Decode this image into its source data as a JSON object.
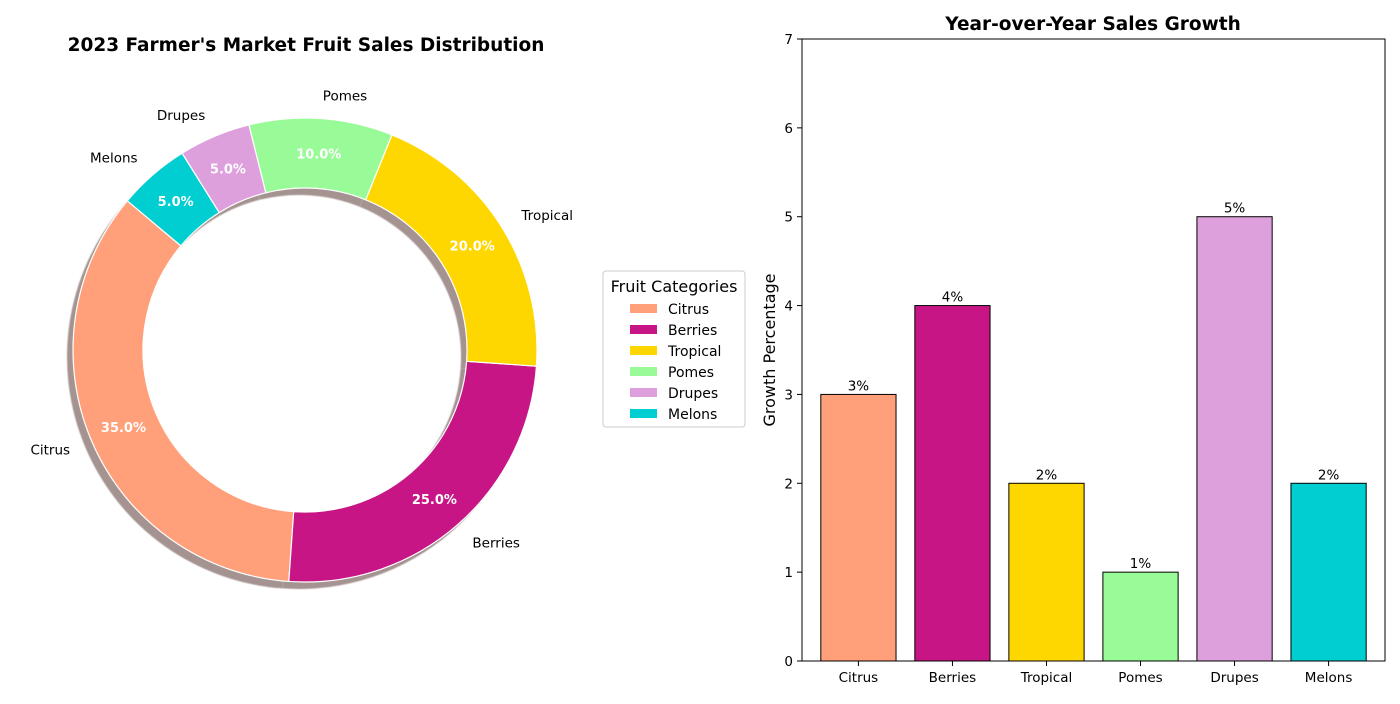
{
  "chart_data": [
    {
      "type": "pie",
      "title": "2023 Farmer's Market Fruit Sales Distribution",
      "donut": true,
      "shadow": true,
      "categories": [
        "Citrus",
        "Berries",
        "Tropical",
        "Pomes",
        "Drupes",
        "Melons"
      ],
      "values": [
        35,
        25,
        20,
        10,
        5,
        5
      ],
      "pct_labels": [
        "35.0%",
        "25.0%",
        "20.0%",
        "10.0%",
        "5.0%",
        "5.0%"
      ],
      "colors": [
        "#FFA07A",
        "#C71585",
        "#FFD700",
        "#98FB98",
        "#DDA0DD",
        "#00CED1"
      ],
      "legend": {
        "title": "Fruit Categories",
        "placement": "right",
        "entries": [
          "Citrus",
          "Berries",
          "Tropical",
          "Pomes",
          "Drupes",
          "Melons"
        ]
      }
    },
    {
      "type": "bar",
      "title": "Year-over-Year Sales Growth",
      "xlabel": "",
      "ylabel": "Growth Percentage",
      "categories": [
        "Citrus",
        "Berries",
        "Tropical",
        "Pomes",
        "Drupes",
        "Melons"
      ],
      "values": [
        3,
        4,
        2,
        1,
        5,
        2
      ],
      "data_labels": [
        "3%",
        "4%",
        "2%",
        "1%",
        "5%",
        "2%"
      ],
      "ylim": [
        0,
        7
      ],
      "yticks": [
        "0",
        "1",
        "2",
        "3",
        "4",
        "5",
        "6",
        "7"
      ],
      "colors": [
        "#FFA07A",
        "#C71585",
        "#FFD700",
        "#98FB98",
        "#DDA0DD",
        "#00CED1"
      ],
      "grid": false
    }
  ]
}
